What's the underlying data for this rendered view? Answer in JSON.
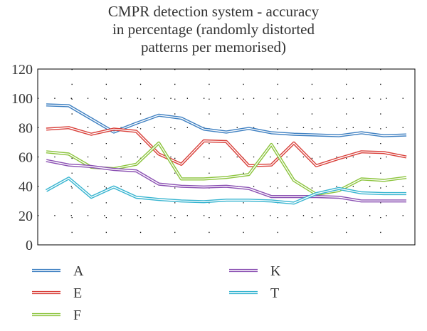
{
  "chart_data": {
    "type": "line",
    "title": [
      "CMPR detection system - accuracy",
      "in percentage (randomly distorted",
      "patterns per memorised)"
    ],
    "xlabel": "",
    "ylabel": "",
    "ylim": [
      0,
      120
    ],
    "yticks": [
      0,
      20,
      40,
      60,
      80,
      100,
      120
    ],
    "x": [
      1,
      2,
      3,
      4,
      5,
      6,
      7,
      8,
      9,
      10,
      11,
      12,
      13,
      14,
      15,
      16,
      17
    ],
    "grid": "dotted",
    "legend_position": "bottom",
    "series": [
      {
        "name": "A",
        "color": "#3d7fc1",
        "values": [
          95.5,
          95,
          86,
          77,
          83,
          88.5,
          86.5,
          79,
          77,
          79.5,
          76.5,
          75.5,
          75,
          74.5,
          76.5,
          74.5,
          75
        ]
      },
      {
        "name": "E",
        "color": "#d9403a",
        "values": [
          79,
          80,
          75.5,
          79,
          77.5,
          62,
          55,
          71,
          70.5,
          54,
          54.5,
          69.5,
          54,
          59,
          63.5,
          63,
          60
        ]
      },
      {
        "name": "F",
        "color": "#8cc43d",
        "values": [
          63.5,
          62,
          53,
          52,
          55,
          69.5,
          45,
          45,
          46,
          48,
          68.5,
          44,
          34.5,
          37,
          45,
          44,
          46
        ]
      },
      {
        "name": "K",
        "color": "#8a4fb2",
        "values": [
          57.5,
          54.5,
          53.5,
          51.5,
          50.5,
          41.5,
          40,
          39.5,
          40,
          38.5,
          33,
          33,
          33,
          32.5,
          30,
          30,
          30
        ]
      },
      {
        "name": "T",
        "color": "#36b4d0",
        "values": [
          37,
          45.5,
          32.5,
          39.5,
          32.5,
          31,
          30,
          29.5,
          30.5,
          30.5,
          30,
          28.5,
          35,
          38.5,
          35.5,
          35,
          35
        ]
      }
    ]
  }
}
